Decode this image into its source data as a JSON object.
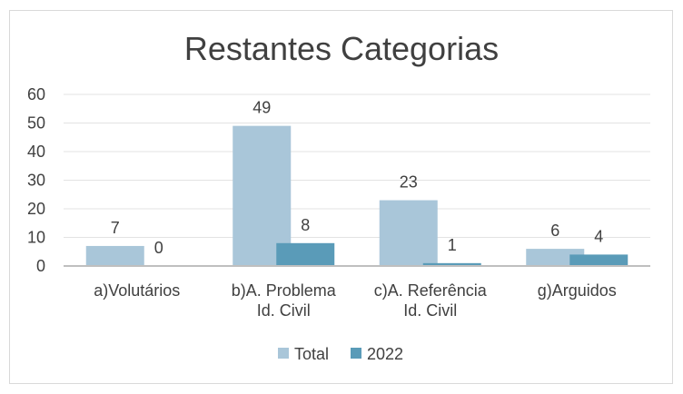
{
  "chart_data": {
    "type": "bar",
    "title": "Restantes Categorias",
    "categories": [
      [
        "a)Volutários"
      ],
      [
        "b)A. Problema",
        "Id. Civil"
      ],
      [
        "c)A. Referência",
        "Id. Civil"
      ],
      [
        "g)Arguidos"
      ]
    ],
    "series": [
      {
        "name": "Total",
        "values": [
          7,
          49,
          23,
          6
        ],
        "color": "#a9c6d9"
      },
      {
        "name": "2022",
        "values": [
          0,
          8,
          1,
          4
        ],
        "color": "#5a9bb8"
      }
    ],
    "ylim": [
      0,
      60
    ],
    "yticks": [
      0,
      10,
      20,
      30,
      40,
      50,
      60
    ],
    "grid": true,
    "legend": "bottom"
  }
}
